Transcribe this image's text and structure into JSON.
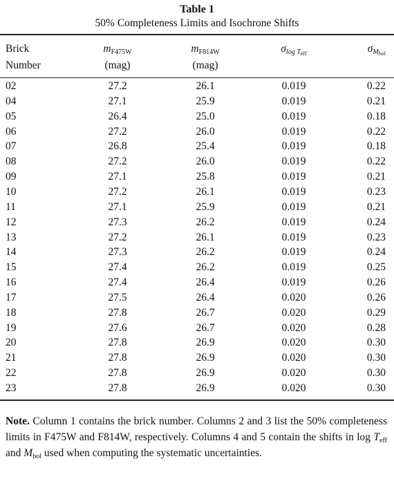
{
  "header": {
    "title": "Table 1",
    "subtitle": "50% Completeness Limits and Isochrone Shifts"
  },
  "table": {
    "columns": [
      {
        "line1": "Brick",
        "line2": "Number"
      },
      {
        "symbol": "m",
        "sub": "F475W",
        "unit": "(mag)"
      },
      {
        "symbol": "m",
        "sub": "F814W",
        "unit": "(mag)"
      },
      {
        "symbol": "σ",
        "sub": "log T",
        "subsub": "eff"
      },
      {
        "symbol": "σ",
        "sub": "M",
        "subsub": "bol"
      }
    ],
    "rows": [
      [
        "02",
        "27.2",
        "26.1",
        "0.019",
        "0.22"
      ],
      [
        "04",
        "27.1",
        "25.9",
        "0.019",
        "0.21"
      ],
      [
        "05",
        "26.4",
        "25.0",
        "0.019",
        "0.18"
      ],
      [
        "06",
        "27.2",
        "26.0",
        "0.019",
        "0.22"
      ],
      [
        "07",
        "26.8",
        "25.4",
        "0.019",
        "0.18"
      ],
      [
        "08",
        "27.2",
        "26.0",
        "0.019",
        "0.22"
      ],
      [
        "09",
        "27.1",
        "25.8",
        "0.019",
        "0.21"
      ],
      [
        "10",
        "27.2",
        "26.1",
        "0.019",
        "0.23"
      ],
      [
        "11",
        "27.1",
        "25.9",
        "0.019",
        "0.21"
      ],
      [
        "12",
        "27.3",
        "26.2",
        "0.019",
        "0.24"
      ],
      [
        "13",
        "27.2",
        "26.1",
        "0.019",
        "0.23"
      ],
      [
        "14",
        "27.3",
        "26.2",
        "0.019",
        "0.24"
      ],
      [
        "15",
        "27.4",
        "26.2",
        "0.019",
        "0.25"
      ],
      [
        "16",
        "27.4",
        "26.4",
        "0.019",
        "0.26"
      ],
      [
        "17",
        "27.5",
        "26.4",
        "0.020",
        "0.26"
      ],
      [
        "18",
        "27.8",
        "26.7",
        "0.020",
        "0.29"
      ],
      [
        "19",
        "27.6",
        "26.7",
        "0.020",
        "0.28"
      ],
      [
        "20",
        "27.8",
        "26.9",
        "0.020",
        "0.30"
      ],
      [
        "21",
        "27.8",
        "26.9",
        "0.020",
        "0.30"
      ],
      [
        "22",
        "27.8",
        "26.9",
        "0.020",
        "0.30"
      ],
      [
        "23",
        "27.8",
        "26.9",
        "0.020",
        "0.30"
      ]
    ]
  },
  "note": {
    "label": "Note.",
    "text1": " Column 1 contains the brick number. Columns 2 and 3 list the 50% completeness limits in F475W and F814W, respectively. Columns 4 and 5 contain the shifts in log ",
    "t": "T",
    "t_sub": "eff",
    "text2": " and ",
    "m": "M",
    "m_sub": "bol",
    "text3": " used when computing the systematic uncertainties."
  }
}
